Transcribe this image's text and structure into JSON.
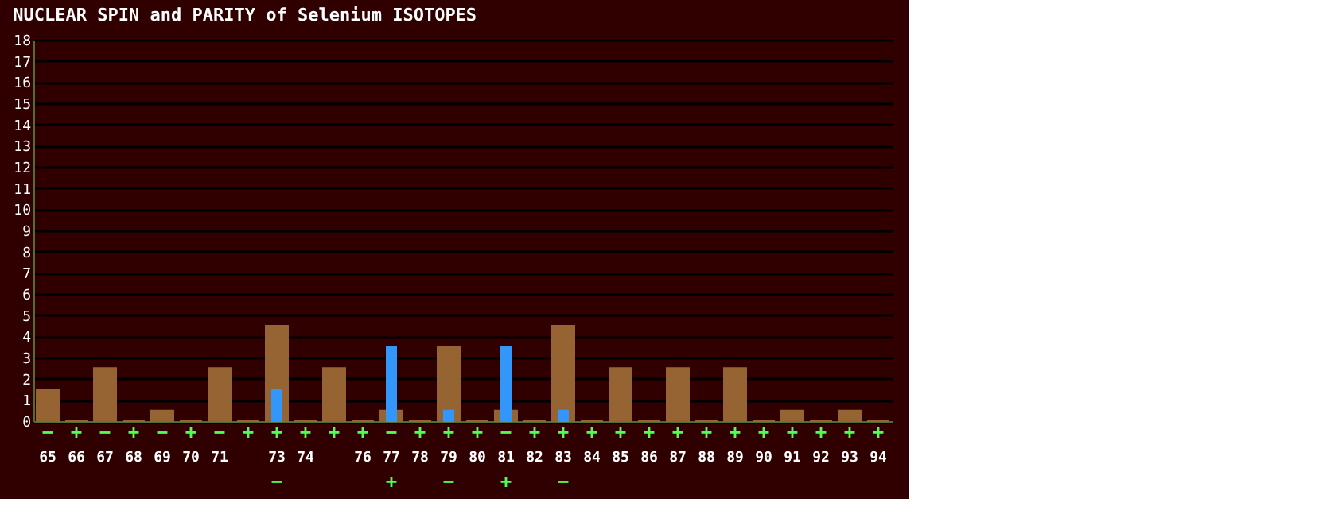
{
  "chart_data": {
    "type": "bar",
    "title": "NUCLEAR SPIN and PARITY of Selenium ISOTOPES",
    "categories": [
      "65",
      "66",
      "67",
      "68",
      "69",
      "70",
      "71",
      null,
      "73",
      "74",
      null,
      "76",
      "77",
      "78",
      "79",
      "80",
      "81",
      "82",
      "83",
      "84",
      "85",
      "86",
      "87",
      "88",
      "89",
      "90",
      "91",
      "92",
      "93",
      "94"
    ],
    "series": [
      {
        "color": "#966432",
        "values": [
          1.5,
          0,
          2.5,
          0,
          0.5,
          0,
          2.5,
          0,
          4.5,
          0,
          2.5,
          0,
          0.5,
          0,
          3.5,
          0,
          0.5,
          0,
          4.5,
          0,
          2.5,
          0,
          2.5,
          0,
          2.5,
          0,
          0.5,
          0,
          0.5,
          0
        ],
        "value_labels": [
          "−",
          "+",
          "−",
          "+",
          "−",
          "+",
          "−",
          "+",
          "+",
          "+",
          "+",
          "+",
          "−",
          "+",
          "+",
          "+",
          "−",
          "+",
          "+",
          "+",
          "+",
          "+",
          "+",
          "+",
          "+",
          "+",
          "+",
          "+",
          "+",
          "+"
        ]
      },
      {
        "color": "#3296fa",
        "values": [
          null,
          null,
          null,
          null,
          null,
          null,
          null,
          null,
          1.5,
          null,
          null,
          null,
          3.5,
          null,
          0.5,
          null,
          3.5,
          null,
          0.5,
          null,
          null,
          null,
          null,
          null,
          null,
          null,
          null,
          null,
          null,
          null
        ],
        "value_labels": [
          null,
          null,
          null,
          null,
          null,
          null,
          null,
          null,
          "−",
          null,
          null,
          null,
          "+",
          null,
          "−",
          null,
          "+",
          null,
          "−",
          null,
          null,
          null,
          null,
          null,
          null,
          null,
          null,
          null,
          null,
          null
        ]
      }
    ],
    "ylim": [
      0,
      18
    ],
    "yticks": [
      0,
      1,
      2,
      3,
      4,
      5,
      6,
      7,
      8,
      9,
      10,
      11,
      12,
      13,
      14,
      15,
      16,
      17,
      18
    ],
    "grid": "y"
  }
}
